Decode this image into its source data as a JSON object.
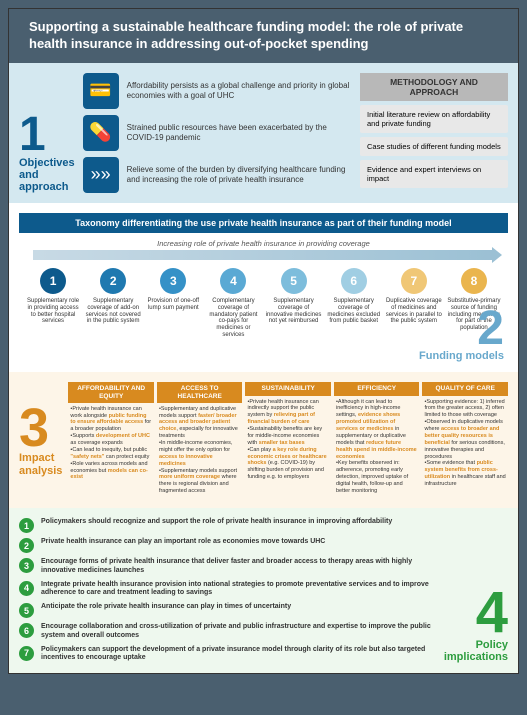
{
  "title": "Supporting a sustainable healthcare funding model: the role of private health insurance in addressing out-of-pocket spending",
  "s1": {
    "num": "1",
    "label": "Objectives and approach",
    "rows": [
      {
        "icon": "💳",
        "text": "Affordability persists as a global challenge and priority in global economies with a goal of UHC"
      },
      {
        "icon": "💊",
        "text": "Strained public resources have been exacerbated by the COVID-19 pandemic"
      },
      {
        "icon": "»»",
        "text": "Relieve some of the burden by diversifying healthcare funding and increasing the role of private health insurance"
      }
    ],
    "meth": {
      "head": "METHODOLOGY AND APPROACH",
      "items": [
        "Initial literature review on affordability and private funding",
        "Case studies of different funding models",
        "Evidence and expert interviews on impact"
      ]
    }
  },
  "s2": {
    "num": "2",
    "label": "Funding models",
    "taxonomy": "Taxonomy differentiating the use private health insurance as part of their funding model",
    "arrow": "Increasing role of private health insurance in providing coverage",
    "colors": [
      "#0d5a8c",
      "#1f79b0",
      "#3591c7",
      "#5aa9d4",
      "#7dbddc",
      "#a0cee3",
      "#f0c776",
      "#eab54e"
    ],
    "items": [
      {
        "n": "1",
        "t": "Supplementary role in providing access to better hospital services"
      },
      {
        "n": "2",
        "t": "Supplementary coverage of add-on services not covered in the public system"
      },
      {
        "n": "3",
        "t": "Provision of one-off lump sum payment"
      },
      {
        "n": "4",
        "t": "Complementary coverage of mandatory patient co-pays for medicines or services"
      },
      {
        "n": "5",
        "t": "Supplementary coverage of innovative medicines not yet reimbursed"
      },
      {
        "n": "6",
        "t": "Supplementary coverage of medicines excluded from public basket"
      },
      {
        "n": "7",
        "t": "Duplicative coverage of medicines and services in parallel to the public system"
      },
      {
        "n": "8",
        "t": "Substitutive-primary source of funding including medicines for part of the population"
      }
    ]
  },
  "s3": {
    "num": "3",
    "label": "Impact analysis",
    "cols": [
      {
        "h": "AFFORDABILITY AND EQUITY",
        "b": "•Private health insurance can work alongside <b>public funding to ensure affordable access</b> for a broader population<br>•Supports <b>development of UHC</b> as coverage expands<br>•Can lead to inequity, but public <b>\"safety nets\"</b> can protect equity<br>•Role varies across models and economies but <b>models can co-exist</b>"
      },
      {
        "h": "ACCESS TO HEALTHCARE",
        "b": "•Supplementary and duplicative models support <b>faster/ broader access and broader patient choice</b>, especially for innovative treatments<br>•In middle-income economies, might offer the only option for <b>access to innovative medicines</b><br>•Supplementary models support <b>more uniform coverage</b> where there is regional division and fragmented access"
      },
      {
        "h": "SUSTAINABILITY",
        "b": "•Private health insurance can indirectly support the public system by <b>relieving part of financial burden of care</b><br>•Sustainability benefits are key for middle-income economies with <b>smaller tax bases</b><br>•Can play <b>a key role during economic crises or healthcare shocks</b> (e.g. COVID-19) by shifting burden of provision and funding e.g. to employers"
      },
      {
        "h": "EFFICIENCY",
        "b": "•Although it can lead to inefficiency in high-income settings, <b>evidence shows promoted utilization of services or medicines</b> in supplementary or duplicative models that <b>reduce future health spend in middle-income economies</b><br>•Key benefits observed in: adherence, promoting early detection, improved uptake of digital health, follow-up and better monitoring"
      },
      {
        "h": "QUALITY OF CARE",
        "b": "•Supporting evidence: 1) inferred from the greater access, 2) often limited to those with coverage<br>•Observed in duplicative models where <b>access to broader and better quality resources is beneficial</b> for serious conditions, innovative therapies and procedures<br>•Some evidence that <b>public system benefits from cross-utilization</b> in healthcare staff and infrastructure"
      }
    ]
  },
  "s4": {
    "num": "4",
    "label": "Policy implications",
    "items": [
      "Policymakers should recognize and support the role of private health insurance in improving affordability",
      "Private health insurance can play an important role as economies move towards UHC",
      "Encourage forms of private health insurance that deliver faster and broader access to therapy areas with highly innovative medicines launches",
      "Integrate private health insurance provision into national strategies to promote preventative services and to improve adherence to care and treatment leading to savings",
      "Anticipate the role private health insurance can play in times of uncertainty",
      "Encourage collaboration and cross-utilization of private and public infrastructure and expertise to improve the public system and overall outcomes",
      "Policymakers can support the development of a private insurance model through clarity of its role but also targeted incentives to encourage uptake"
    ]
  }
}
